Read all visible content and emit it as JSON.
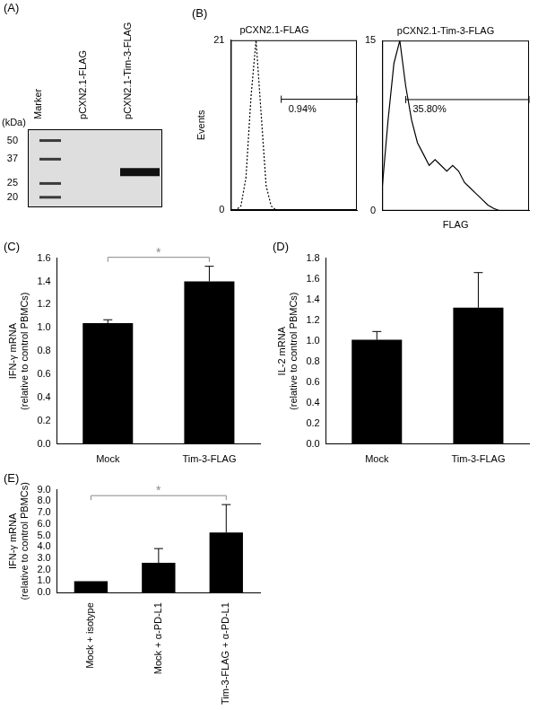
{
  "chart_data": [
    {
      "type": "blot",
      "title": "(A)",
      "y_label": "(kDa)",
      "categories": [
        "Marker",
        "pCXN2.1-FLAG",
        "pCXN2.1-Tim-3-FLAG"
      ],
      "bands": [
        [
          50,
          37,
          25,
          20
        ],
        [],
        [
          30
        ]
      ],
      "log": "y",
      "ylim": [
        17,
        60
      ],
      "yticks": [
        20,
        25,
        37,
        50
      ],
      "grid": false
    },
    {
      "type": "line",
      "title": "(B)",
      "subtitle": "pCXN2.1-FLAG",
      "y_label": "Events",
      "x": [
        0,
        4,
        8,
        12,
        16,
        20,
        24,
        28,
        32,
        36,
        40,
        44,
        48,
        52,
        56,
        60,
        64,
        68,
        72,
        76,
        80,
        84,
        88,
        92,
        96,
        100
      ],
      "values": [
        0,
        0,
        0.5,
        4,
        14,
        21,
        12,
        3,
        0.5,
        0,
        0,
        0,
        0,
        0,
        0,
        0,
        0,
        0,
        0,
        0,
        0,
        0,
        0,
        0,
        0,
        0
      ],
      "xlim": [
        0,
        100
      ],
      "ylim": [
        0,
        21
      ],
      "yticks": [
        0,
        21
      ],
      "tick_labels": "y",
      "grid": false,
      "color": "#000000",
      "line_style": "dotted",
      "gate": {
        "x": [
          40,
          100
        ],
        "y": 13.7,
        "label": "0.94%"
      }
    },
    {
      "type": "line",
      "subtitle": "pCXN2.1-Tim-3-FLAG",
      "x_label": "FLAG",
      "x": [
        0,
        4,
        8,
        12,
        16,
        20,
        24,
        28,
        32,
        36,
        40,
        44,
        48,
        52,
        56,
        60,
        64,
        68,
        72,
        76,
        80,
        84,
        88,
        92,
        96,
        100
      ],
      "values": [
        2,
        8,
        13,
        15,
        11,
        8,
        6,
        5,
        4,
        4.5,
        4,
        3.5,
        4,
        3.5,
        2.5,
        2,
        1.5,
        1,
        0.5,
        0.2,
        0,
        0,
        0,
        0,
        0,
        0
      ],
      "xlim": [
        0,
        100
      ],
      "ylim": [
        0,
        15
      ],
      "yticks": [
        0,
        15
      ],
      "tick_labels": "y",
      "grid": false,
      "color": "#000000",
      "line_style": "solid",
      "gate": {
        "x": [
          16,
          100
        ],
        "y": 9.8,
        "label": "35.80%"
      }
    },
    {
      "type": "bar",
      "title": "(C)",
      "y_label": [
        "IFN-γ mRNA",
        "(relative to control PBMCs)"
      ],
      "categories": [
        "Mock",
        "Tim-3-FLAG"
      ],
      "values": [
        1.04,
        1.4
      ],
      "errors": [
        0.03,
        0.13
      ],
      "ylim": [
        0,
        1.6
      ],
      "yticks": [
        {
          "value": 0,
          "label": "0.0"
        },
        {
          "value": 0.2,
          "label": "0.2"
        },
        {
          "value": 0.4,
          "label": "0.4"
        },
        {
          "value": 0.6,
          "label": "0.6"
        },
        {
          "value": 0.8,
          "label": "0.8"
        },
        {
          "value": 1,
          "label": "1.0"
        },
        {
          "value": 1.2,
          "label": "1.2"
        },
        {
          "value": 1.4,
          "label": "1.4"
        },
        {
          "value": 1.6,
          "label": "1.6"
        }
      ],
      "color": "#000000",
      "grid": false,
      "annotations": [
        {
          "text": "*",
          "from": "Mock",
          "to": "Tim-3-FLAG"
        }
      ]
    },
    {
      "type": "bar",
      "title": "(D)",
      "y_label": [
        "IL-2 mRNA",
        "(relative to control PBMCs)"
      ],
      "categories": [
        "Mock",
        "Tim-3-FLAG"
      ],
      "values": [
        1.01,
        1.32
      ],
      "errors": [
        0.08,
        0.34
      ],
      "ylim": [
        0,
        1.8
      ],
      "yticks": [
        {
          "value": 0,
          "label": "0.0"
        },
        {
          "value": 0.2,
          "label": "0.2"
        },
        {
          "value": 0.4,
          "label": "0.4"
        },
        {
          "value": 0.6,
          "label": "0.6"
        },
        {
          "value": 0.8,
          "label": "0.8"
        },
        {
          "value": 1,
          "label": "1.0"
        },
        {
          "value": 1.2,
          "label": "1.2"
        },
        {
          "value": 1.4,
          "label": "1.4"
        },
        {
          "value": 1.6,
          "label": "1.6"
        },
        {
          "value": 1.8,
          "label": "1.8"
        }
      ],
      "color": "#000000",
      "grid": false
    },
    {
      "type": "bar",
      "title": "(E)",
      "y_label": [
        "IFN-γ mRNA",
        "(relative to control PBMCs)"
      ],
      "categories": [
        "Mock + isotype",
        "Mock + α-PD-L1",
        "Tim-3-FLAG + α-PD-L1"
      ],
      "values": [
        1.0,
        2.6,
        5.25
      ],
      "errors": [
        0,
        1.25,
        2.45
      ],
      "ylim": [
        0,
        9
      ],
      "yticks": [
        {
          "value": 0,
          "label": "0.0"
        },
        {
          "value": 1,
          "label": "1.0"
        },
        {
          "value": 2,
          "label": "2.0"
        },
        {
          "value": 3,
          "label": "3.0"
        },
        {
          "value": 4,
          "label": "4.0"
        },
        {
          "value": 5,
          "label": "5.0"
        },
        {
          "value": 6,
          "label": "6.0"
        },
        {
          "value": 7,
          "label": "7.0"
        },
        {
          "value": 8,
          "label": "8.0"
        },
        {
          "value": 9,
          "label": "9.0"
        }
      ],
      "color": "#000000",
      "grid": false,
      "annotations": [
        {
          "text": "*",
          "from": "Mock + isotype",
          "to": "Tim-3-FLAG + α-PD-L1"
        }
      ]
    }
  ]
}
